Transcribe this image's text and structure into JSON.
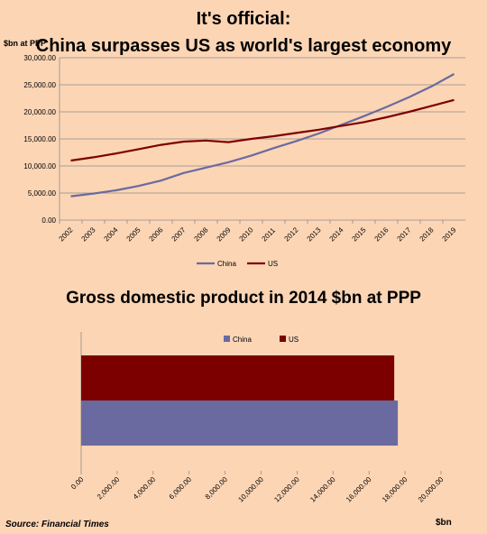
{
  "titles": {
    "line_title_1": "It's official:",
    "line_title_2": "China surpasses US as world's largest economy",
    "bar_title": "Gross domestic product in 2014 $bn at PPP"
  },
  "source": "Source: Financial Times",
  "colors": {
    "china": "#6a6aa0",
    "us": "#7d0000",
    "background": "#fcd5b5",
    "grid": "#8c8c8c"
  },
  "chart_data": [
    {
      "type": "line",
      "title": "It's official: China surpasses US as world's largest economy",
      "ylabel": "$bn at PPP",
      "xlabel": "",
      "categories": [
        "2002",
        "2003",
        "2004",
        "2005",
        "2006",
        "2007",
        "2008",
        "2009",
        "2010",
        "2011",
        "2012",
        "2013",
        "2014",
        "2015",
        "2016",
        "2017",
        "2018",
        "2019"
      ],
      "series": [
        {
          "name": "China",
          "color": "#6a6aa0",
          "values": [
            4400,
            4900,
            5500,
            6300,
            7300,
            8700,
            9700,
            10700,
            11900,
            13300,
            14600,
            16000,
            17600,
            19200,
            20900,
            22700,
            24700,
            27000
          ]
        },
        {
          "name": "US",
          "color": "#7d0000",
          "values": [
            11000,
            11600,
            12300,
            13100,
            13900,
            14500,
            14700,
            14400,
            15000,
            15500,
            16100,
            16700,
            17400,
            18100,
            19000,
            20000,
            21100,
            22200
          ]
        }
      ],
      "yticks": [
        "0.00",
        "5,000.00",
        "10,000.00",
        "15,000.00",
        "20,000.00",
        "25,000.00",
        "30,000.00"
      ],
      "ylim": [
        0,
        30000
      ],
      "grid": true,
      "legend": "bottom"
    },
    {
      "type": "bar",
      "orientation": "horizontal",
      "title": "Gross domestic product in 2014 $bn at PPP",
      "xlabel": "$bn",
      "series": [
        {
          "name": "China",
          "color": "#6a6aa0",
          "values": [
            17600
          ]
        },
        {
          "name": "US",
          "color": "#7d0000",
          "values": [
            17400
          ]
        }
      ],
      "xticks": [
        "0.00",
        "2,000.00",
        "4,000.00",
        "6,000.00",
        "8,000.00",
        "10,000.00",
        "12,000.00",
        "14,000.00",
        "16,000.00",
        "18,000.00",
        "20,000.00"
      ],
      "xlim": [
        0,
        20000
      ],
      "legend": "top"
    }
  ]
}
